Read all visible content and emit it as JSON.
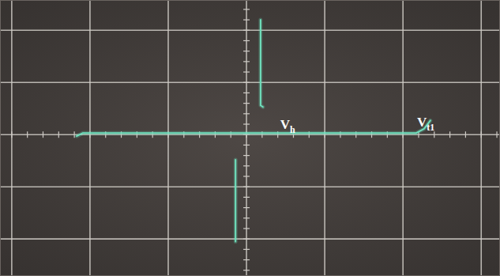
{
  "chart_data": {
    "type": "line",
    "color": "#6fe0bd",
    "grid": true,
    "tick_labels": false,
    "xlim": [
      -3.15,
      3.24
    ],
    "ylim": [
      -2.71,
      2.58
    ],
    "xticks": [
      -3,
      -2,
      -1,
      0,
      1,
      2,
      3
    ],
    "yticks": [
      -2,
      -1,
      0,
      1,
      2
    ],
    "x": [
      -2.17,
      -2.09,
      2.17,
      2.27,
      2.35,
      null,
      0.18,
      0.18,
      0.21,
      null,
      -0.14,
      -0.14
    ],
    "values": [
      -0.03,
      0.03,
      0.03,
      0.11,
      0.27,
      null,
      2.2,
      0.56,
      0.53,
      null,
      -0.48,
      -2.05
    ],
    "annotations": [
      {
        "text": "V",
        "subscript": "h",
        "x": 0.43,
        "y": 0.11
      },
      {
        "text": "V",
        "subscript": "t1",
        "x": 2.18,
        "y": 0.15
      }
    ]
  }
}
